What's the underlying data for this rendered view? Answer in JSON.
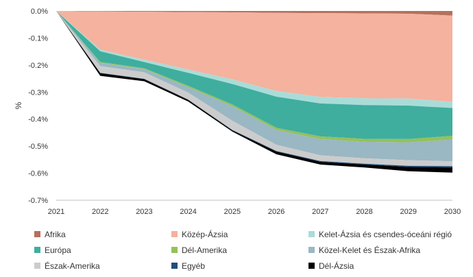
{
  "chart_data": {
    "type": "area",
    "stacked": true,
    "title": "",
    "xlabel": "",
    "ylabel": "%",
    "ylim": [
      -0.7,
      0.0
    ],
    "yticks": [
      0.0,
      -0.1,
      -0.2,
      -0.3,
      -0.4,
      -0.5,
      -0.6,
      -0.7
    ],
    "ytick_labels": [
      "0.0%",
      "-0.1%",
      "-0.2%",
      "-0.3%",
      "-0.4%",
      "-0.5%",
      "-0.6%",
      "-0.7%"
    ],
    "x": [
      "2021",
      "2022",
      "2023",
      "2024",
      "2025",
      "2026",
      "2027",
      "2028",
      "2029",
      "2030"
    ],
    "series": [
      {
        "name": "Afrika",
        "color": "#b5715c",
        "values": [
          0,
          -0.002,
          -0.003,
          -0.004,
          -0.005,
          -0.007,
          -0.008,
          -0.009,
          -0.01,
          -0.017
        ]
      },
      {
        "name": "Közép-Ázsia",
        "color": "#f4b29f",
        "values": [
          0,
          -0.141,
          -0.177,
          -0.213,
          -0.248,
          -0.289,
          -0.31,
          -0.314,
          -0.314,
          -0.319
        ]
      },
      {
        "name": "Kelet-Ázsia és csendes-óceáni régió",
        "color": "#a9dcd8",
        "values": [
          0,
          -0.006,
          -0.009,
          -0.012,
          -0.017,
          -0.021,
          -0.024,
          -0.025,
          -0.026,
          -0.023
        ]
      },
      {
        "name": "Európa",
        "color": "#3fae9e",
        "values": [
          0,
          -0.04,
          -0.023,
          -0.048,
          -0.076,
          -0.115,
          -0.122,
          -0.125,
          -0.124,
          -0.103
        ]
      },
      {
        "name": "Dél-Amerika",
        "color": "#94c15a",
        "values": [
          0,
          -0.003,
          -0.003,
          -0.005,
          -0.006,
          -0.008,
          -0.01,
          -0.011,
          -0.012,
          -0.014
        ]
      },
      {
        "name": "Közel-Kelet és Észak-Afrika",
        "color": "#9ab7c4",
        "values": [
          0,
          -0.012,
          -0.012,
          -0.02,
          -0.054,
          -0.055,
          -0.06,
          -0.061,
          -0.066,
          -0.08
        ]
      },
      {
        "name": "Észak-Amerika",
        "color": "#cccccc",
        "values": [
          0,
          -0.025,
          -0.024,
          -0.026,
          -0.034,
          -0.023,
          -0.021,
          -0.02,
          -0.021,
          -0.018
        ]
      },
      {
        "name": "Egyéb",
        "color": "#1f4e79",
        "values": [
          0,
          -0.001,
          -0.001,
          -0.001,
          -0.002,
          -0.002,
          -0.003,
          -0.003,
          -0.004,
          -0.005
        ]
      },
      {
        "name": "Dél-Ázsia",
        "color": "#000000",
        "values": [
          0,
          -0.01,
          -0.008,
          -0.006,
          -0.004,
          -0.01,
          -0.01,
          -0.011,
          -0.016,
          -0.019
        ]
      }
    ],
    "legend_position": "bottom",
    "legend_layout": [
      [
        "Afrika",
        "Közép-Ázsia",
        "Kelet-Ázsia és csendes-óceáni régió"
      ],
      [
        "Európa",
        "Dél-Amerika",
        "Közel-Kelet és Észak-Afrika"
      ],
      [
        "Észak-Amerika",
        "Egyéb",
        "Dél-Ázsia"
      ]
    ],
    "grid": false
  }
}
